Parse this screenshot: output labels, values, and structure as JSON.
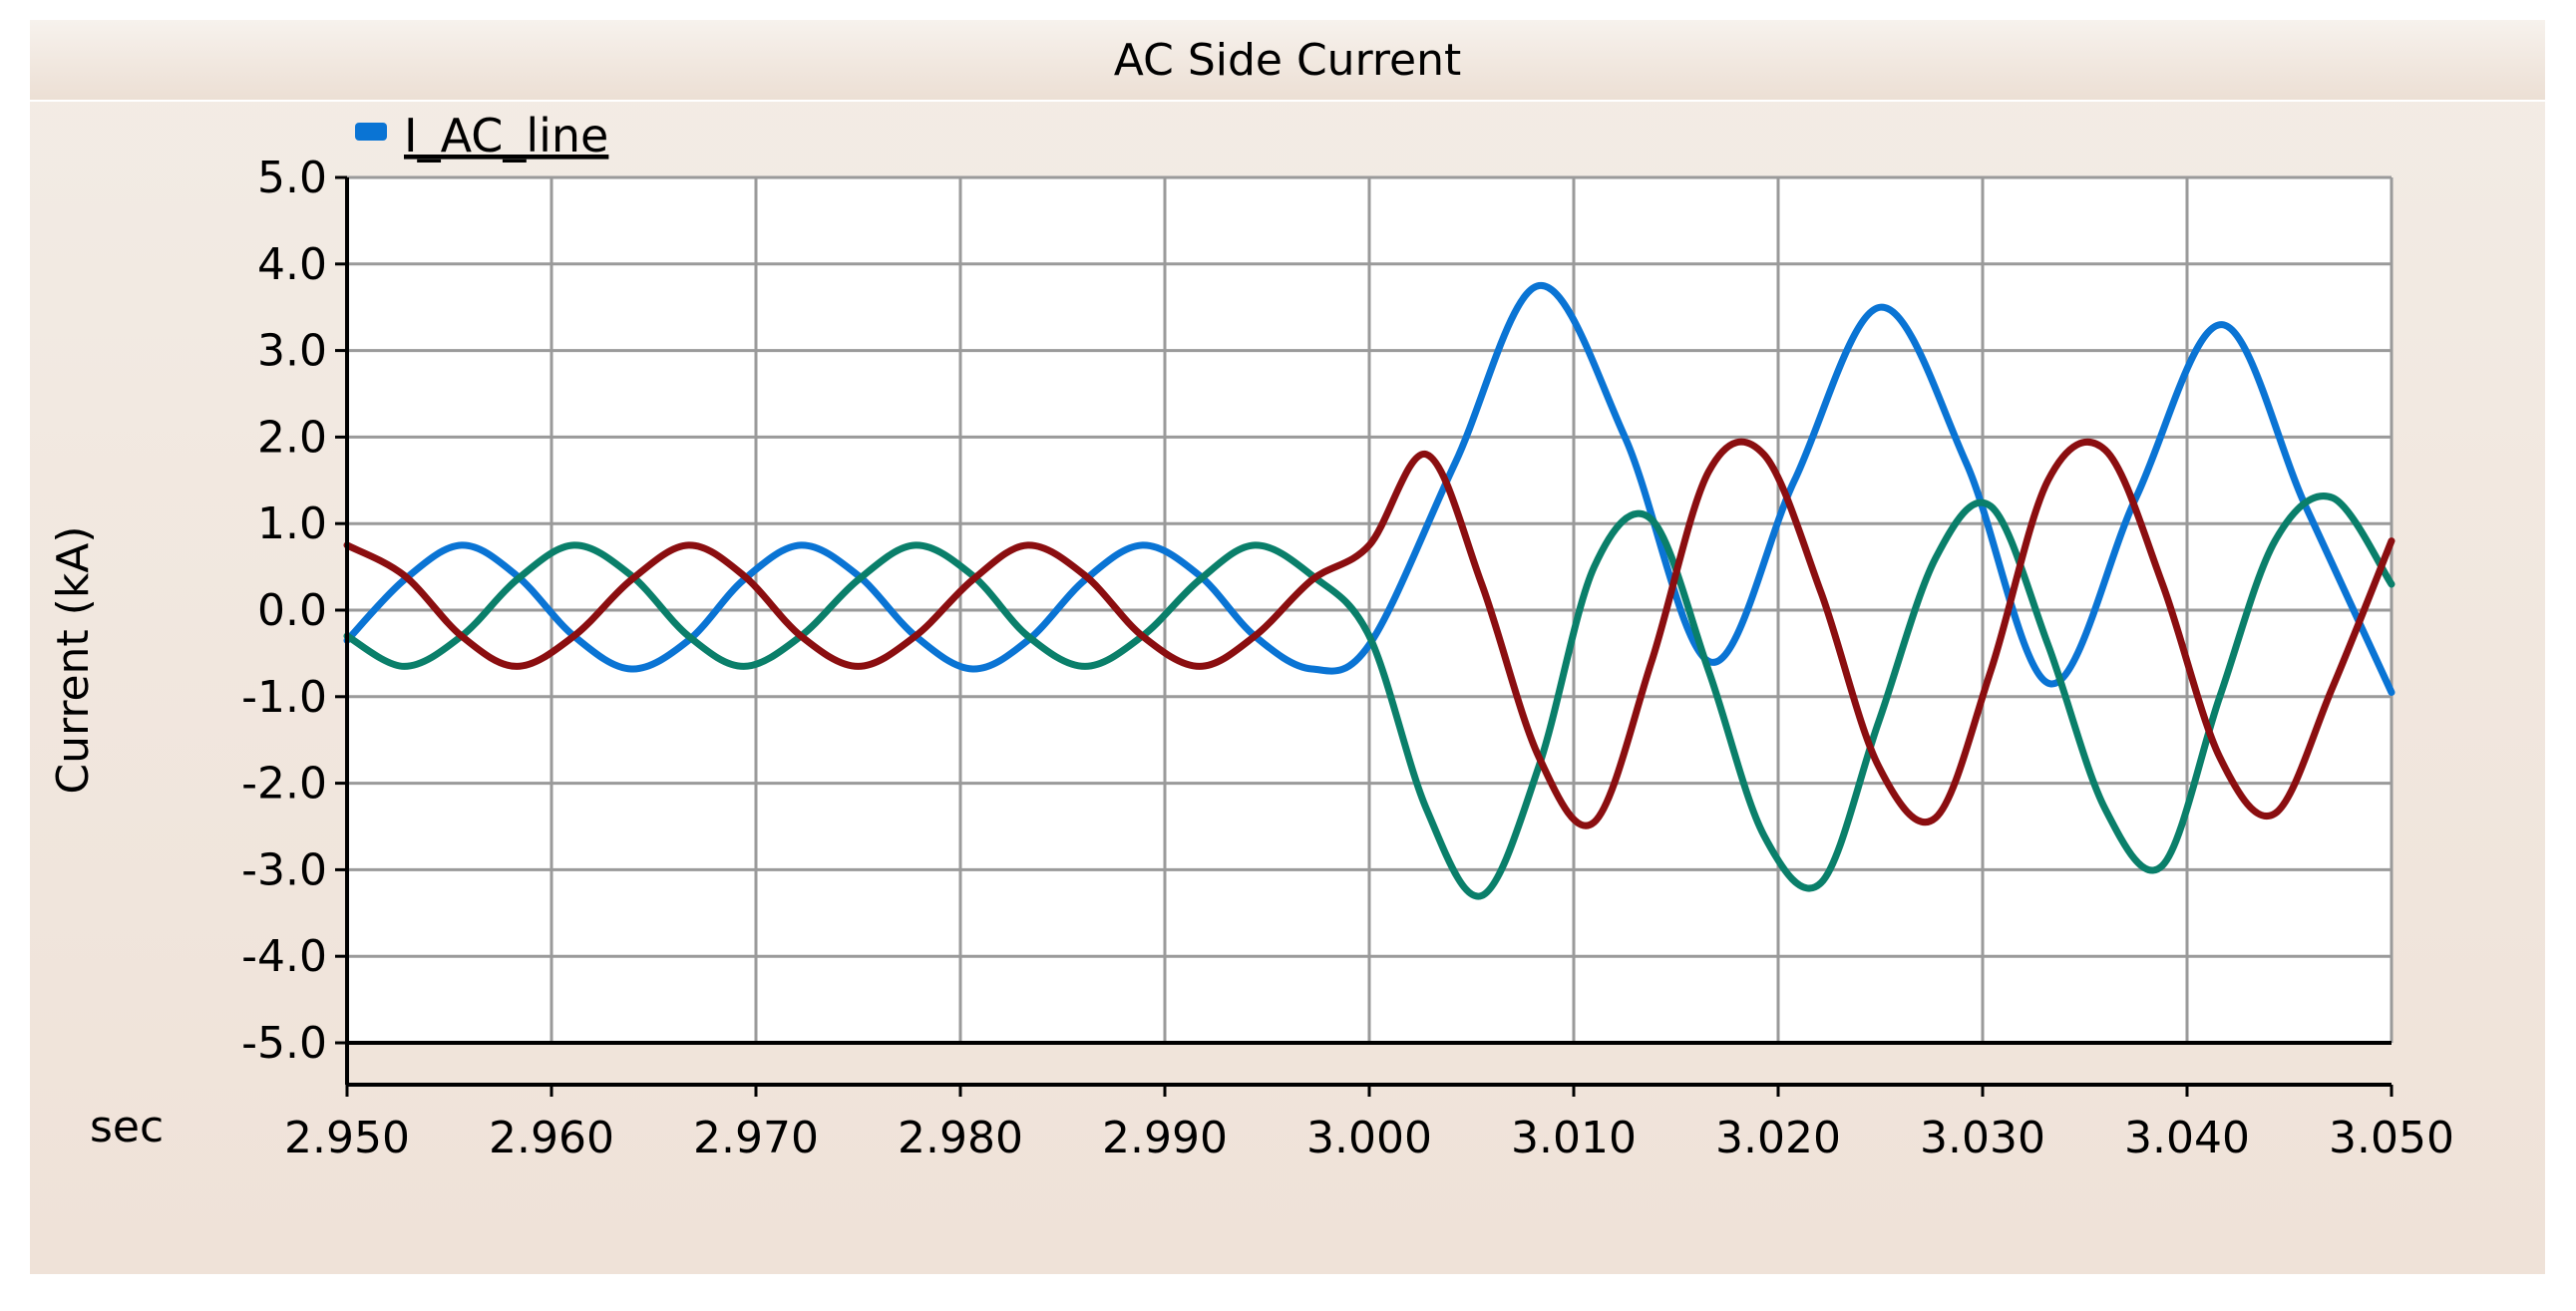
{
  "chart_data": {
    "type": "line",
    "title": "AC Side Current",
    "legend": {
      "label": "I_AC_line",
      "placement": "top-left",
      "color": "#0a74d4"
    },
    "ylabel": "Current (kA)",
    "xlabel": "sec",
    "xlim": [
      2.95,
      3.05
    ],
    "ylim": [
      -5.0,
      5.0
    ],
    "grid": true,
    "x_ticks": [
      "2.950",
      "2.960",
      "2.970",
      "2.980",
      "2.990",
      "3.000",
      "3.010",
      "3.020",
      "3.030",
      "3.040",
      "3.050"
    ],
    "y_ticks": [
      "5.0",
      "4.0",
      "3.0",
      "2.0",
      "1.0",
      "0.0",
      "-1.0",
      "-2.0",
      "-3.0",
      "-4.0",
      "-5.0"
    ],
    "series": [
      {
        "color": "#0a74d4",
        "x": [
          2.95,
          2.9528,
          2.9556,
          2.9583,
          2.9611,
          2.9639,
          2.9667,
          2.9694,
          2.9722,
          2.975,
          2.9778,
          2.9806,
          2.9833,
          2.9861,
          2.9889,
          2.9917,
          2.9944,
          2.9972,
          3.0,
          3.0042,
          3.0083,
          3.0125,
          3.0167,
          3.0208,
          3.025,
          3.0292,
          3.0333,
          3.0375,
          3.0417,
          3.0458,
          3.05
        ],
        "y": [
          -0.35,
          0.35,
          0.75,
          0.4,
          -0.3,
          -0.68,
          -0.35,
          0.35,
          0.75,
          0.4,
          -0.3,
          -0.68,
          -0.35,
          0.35,
          0.75,
          0.4,
          -0.3,
          -0.68,
          -0.4,
          1.7,
          3.75,
          2.0,
          -0.6,
          1.5,
          3.5,
          1.7,
          -0.85,
          1.3,
          3.3,
          1.2,
          -0.95
        ]
      },
      {
        "color": "#0a7f6a",
        "x": [
          2.95,
          2.9528,
          2.9556,
          2.9583,
          2.9611,
          2.9639,
          2.9667,
          2.9694,
          2.9722,
          2.975,
          2.9778,
          2.9806,
          2.9833,
          2.9861,
          2.9889,
          2.9917,
          2.9944,
          2.9972,
          3.0,
          3.0028,
          3.0055,
          3.0083,
          3.011,
          3.0138,
          3.0166,
          3.0193,
          3.0221,
          3.0249,
          3.0277,
          3.0304,
          3.0332,
          3.036,
          3.0388,
          3.0416,
          3.0443,
          3.0471,
          3.05
        ],
        "y": [
          -0.3,
          -0.65,
          -0.3,
          0.35,
          0.75,
          0.4,
          -0.3,
          -0.65,
          -0.3,
          0.35,
          0.75,
          0.4,
          -0.3,
          -0.65,
          -0.3,
          0.35,
          0.75,
          0.4,
          -0.3,
          -2.3,
          -3.3,
          -1.8,
          0.5,
          1.05,
          -0.7,
          -2.6,
          -3.15,
          -1.3,
          0.6,
          1.2,
          -0.4,
          -2.3,
          -2.95,
          -1.0,
          0.8,
          1.3,
          0.3
        ]
      },
      {
        "color": "#8b0e10",
        "x": [
          2.95,
          2.9528,
          2.9556,
          2.9583,
          2.9611,
          2.9639,
          2.9667,
          2.9694,
          2.9722,
          2.975,
          2.9778,
          2.9806,
          2.9833,
          2.9861,
          2.9889,
          2.9917,
          2.9944,
          2.9972,
          3.0,
          3.0028,
          3.0055,
          3.0083,
          3.011,
          3.0138,
          3.0166,
          3.0193,
          3.0221,
          3.0249,
          3.0277,
          3.0304,
          3.0332,
          3.036,
          3.0388,
          3.0416,
          3.0443,
          3.0471,
          3.05
        ],
        "y": [
          0.75,
          0.4,
          -0.3,
          -0.65,
          -0.3,
          0.35,
          0.75,
          0.4,
          -0.3,
          -0.65,
          -0.3,
          0.35,
          0.75,
          0.4,
          -0.3,
          -0.65,
          -0.3,
          0.35,
          0.75,
          1.8,
          0.3,
          -1.7,
          -2.45,
          -0.6,
          1.6,
          1.8,
          0.2,
          -1.8,
          -2.4,
          -0.7,
          1.5,
          1.85,
          0.3,
          -1.7,
          -2.35,
          -0.9,
          0.8
        ]
      }
    ]
  }
}
